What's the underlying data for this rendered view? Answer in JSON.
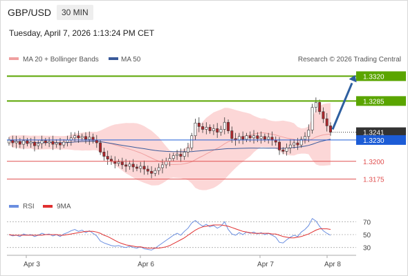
{
  "header": {
    "symbol": "GBP/USD",
    "timeframe": "30 MIN",
    "datetime": "Tuesday, April 7, 2026 1:13:24 PM CET"
  },
  "legend": {
    "ma20_label": "MA 20 + Bollinger Bands",
    "ma50_label": "MA 50",
    "copyright": "Research © 2026 Trading Central"
  },
  "rsi_legend": {
    "rsi_label": "RSI",
    "ma_label": "9MA"
  },
  "colors": {
    "resistance": "#5aa500",
    "support": "#e05050",
    "current_price": "#333333",
    "pivot": "#1c5cd6",
    "candle_up": "#ffffff",
    "candle_down": "#b0262b",
    "bollinger_fill": "#fcd7d7",
    "ma20": "#f0a0a0",
    "ma50": "#3a5a9a",
    "rsi": "#6a8ee0",
    "rsi_ma": "#e03030",
    "arrow": "#2e5fa0"
  },
  "chart_data": {
    "type": "candlestick",
    "x_labels": [
      "Apr 3",
      "Apr 6",
      "Apr 7",
      "Apr 8"
    ],
    "ylim": [
      1.3155,
      1.3335
    ],
    "levels": [
      {
        "label": "1.3320",
        "value": 1.332,
        "kind": "resistance"
      },
      {
        "label": "1.3285",
        "value": 1.3285,
        "kind": "resistance"
      },
      {
        "label": "1.3241",
        "value": 1.3241,
        "kind": "current"
      },
      {
        "label": "1.3230",
        "value": 1.323,
        "kind": "pivot"
      },
      {
        "label": "1.3200",
        "value": 1.32,
        "kind": "support"
      },
      {
        "label": "1.3175",
        "value": 1.3175,
        "kind": "support"
      }
    ],
    "close": [
      1.323,
      1.3226,
      1.3228,
      1.3224,
      1.3229,
      1.3225,
      1.3227,
      1.3222,
      1.3225,
      1.3229,
      1.3226,
      1.3228,
      1.3224,
      1.3226,
      1.3223,
      1.3227,
      1.323,
      1.3233,
      1.3236,
      1.3233,
      1.3235,
      1.3231,
      1.3234,
      1.323,
      1.3226,
      1.3213,
      1.3207,
      1.3203,
      1.32,
      1.3197,
      1.3199,
      1.3195,
      1.3193,
      1.3196,
      1.3192,
      1.319,
      1.3193,
      1.3189,
      1.3186,
      1.3183,
      1.3187,
      1.3191,
      1.3195,
      1.32,
      1.3204,
      1.3208,
      1.321,
      1.3207,
      1.3213,
      1.3219,
      1.3236,
      1.3254,
      1.3249,
      1.3245,
      1.3248,
      1.3243,
      1.3246,
      1.3241,
      1.3245,
      1.3255,
      1.3243,
      1.3232,
      1.323,
      1.3235,
      1.3231,
      1.3236,
      1.3233,
      1.3236,
      1.3232,
      1.3235,
      1.3231,
      1.3234,
      1.323,
      1.3227,
      1.3216,
      1.3214,
      1.3219,
      1.3223,
      1.3226,
      1.3223,
      1.3231,
      1.3235,
      1.3244,
      1.3276,
      1.3283,
      1.327,
      1.326,
      1.325,
      1.3241
    ],
    "rsi": {
      "ylim": [
        20,
        80
      ],
      "ticks": [
        70,
        50,
        30
      ],
      "rsi": [
        50,
        48,
        49,
        47,
        51,
        49,
        50,
        47,
        49,
        52,
        50,
        51,
        48,
        50,
        47,
        51,
        53,
        56,
        58,
        55,
        57,
        53,
        56,
        52,
        48,
        40,
        37,
        35,
        33,
        32,
        33,
        31,
        30,
        32,
        30,
        29,
        31,
        28,
        27,
        26,
        29,
        33,
        37,
        41,
        45,
        49,
        52,
        49,
        55,
        60,
        68,
        72,
        67,
        63,
        66,
        62,
        64,
        60,
        63,
        70,
        58,
        51,
        49,
        53,
        50,
        54,
        52,
        54,
        51,
        53,
        50,
        52,
        49,
        46,
        38,
        37,
        42,
        46,
        49,
        47,
        54,
        58,
        64,
        75,
        71,
        63,
        56,
        52,
        49
      ],
      "ma": [
        50,
        49,
        49,
        49,
        49,
        49,
        49,
        49,
        49,
        49,
        50,
        50,
        50,
        50,
        49,
        49,
        50,
        51,
        52,
        53,
        54,
        55,
        55,
        55,
        54,
        52,
        49,
        47,
        44,
        41,
        38,
        36,
        34,
        33,
        32,
        31,
        31,
        30,
        29,
        29,
        29,
        29,
        30,
        31,
        33,
        36,
        39,
        42,
        45,
        49,
        53,
        57,
        60,
        62,
        63,
        64,
        65,
        65,
        65,
        64,
        63,
        61,
        59,
        57,
        55,
        54,
        53,
        52,
        52,
        52,
        52,
        52,
        51,
        51,
        49,
        47,
        46,
        45,
        45,
        46,
        47,
        49,
        51,
        54,
        57,
        59,
        59,
        59,
        58
      ]
    }
  }
}
